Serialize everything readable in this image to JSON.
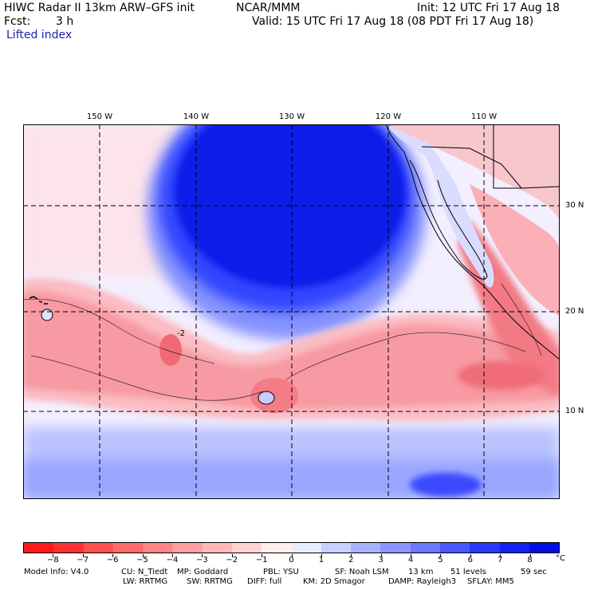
{
  "header": {
    "title": "HIWC Radar II 13km ARW–GFS init",
    "org": "NCAR/MMM",
    "init": "Init: 12 UTC Fri 17 Aug 18",
    "fcst_label": "Fcst:",
    "fcst_value": "3 h",
    "valid": "Valid: 15 UTC Fri 17 Aug 18 (08 PDT Fri 17 Aug 18)",
    "field": "Lifted index"
  },
  "map": {
    "lon_labels": [
      "150 W",
      "140 W",
      "130 W",
      "120 W",
      "110 W"
    ],
    "lat_labels": [
      "30 N",
      "20 N",
      "10 N"
    ],
    "contour_label": "-2"
  },
  "legend": {
    "ticks": [
      "−8",
      "−7",
      "−6",
      "−5",
      "−4",
      "−3",
      "−2",
      "−1",
      "0",
      "1",
      "2",
      "3",
      "4",
      "5",
      "6",
      "7",
      "8"
    ],
    "unit": "°C",
    "colors": [
      "#ff1a1a",
      "#ff3333",
      "#ff5050",
      "#ff6a6a",
      "#ff8484",
      "#ff9f9f",
      "#ffb9b9",
      "#ffd3d3",
      "#ffefef",
      "#e8ecff",
      "#c8d0ff",
      "#a8b2ff",
      "#8a96ff",
      "#6b78ff",
      "#4a58ff",
      "#2b38ff",
      "#1222f5",
      "#0010e0"
    ]
  },
  "footer": {
    "line1": [
      "Model Info: V4.0",
      "CU: N_Tiedt",
      "MP: Goddard",
      "PBL: YSU",
      "SF: Noah LSM",
      "13 km",
      "51 levels",
      "59 sec"
    ],
    "line2": [
      "LW: RRTMG",
      "SW: RRTMG",
      "DIFF: full",
      "KM: 2D Smagor",
      "DAMP: Rayleigh3",
      "SFLAY: MM5"
    ]
  }
}
